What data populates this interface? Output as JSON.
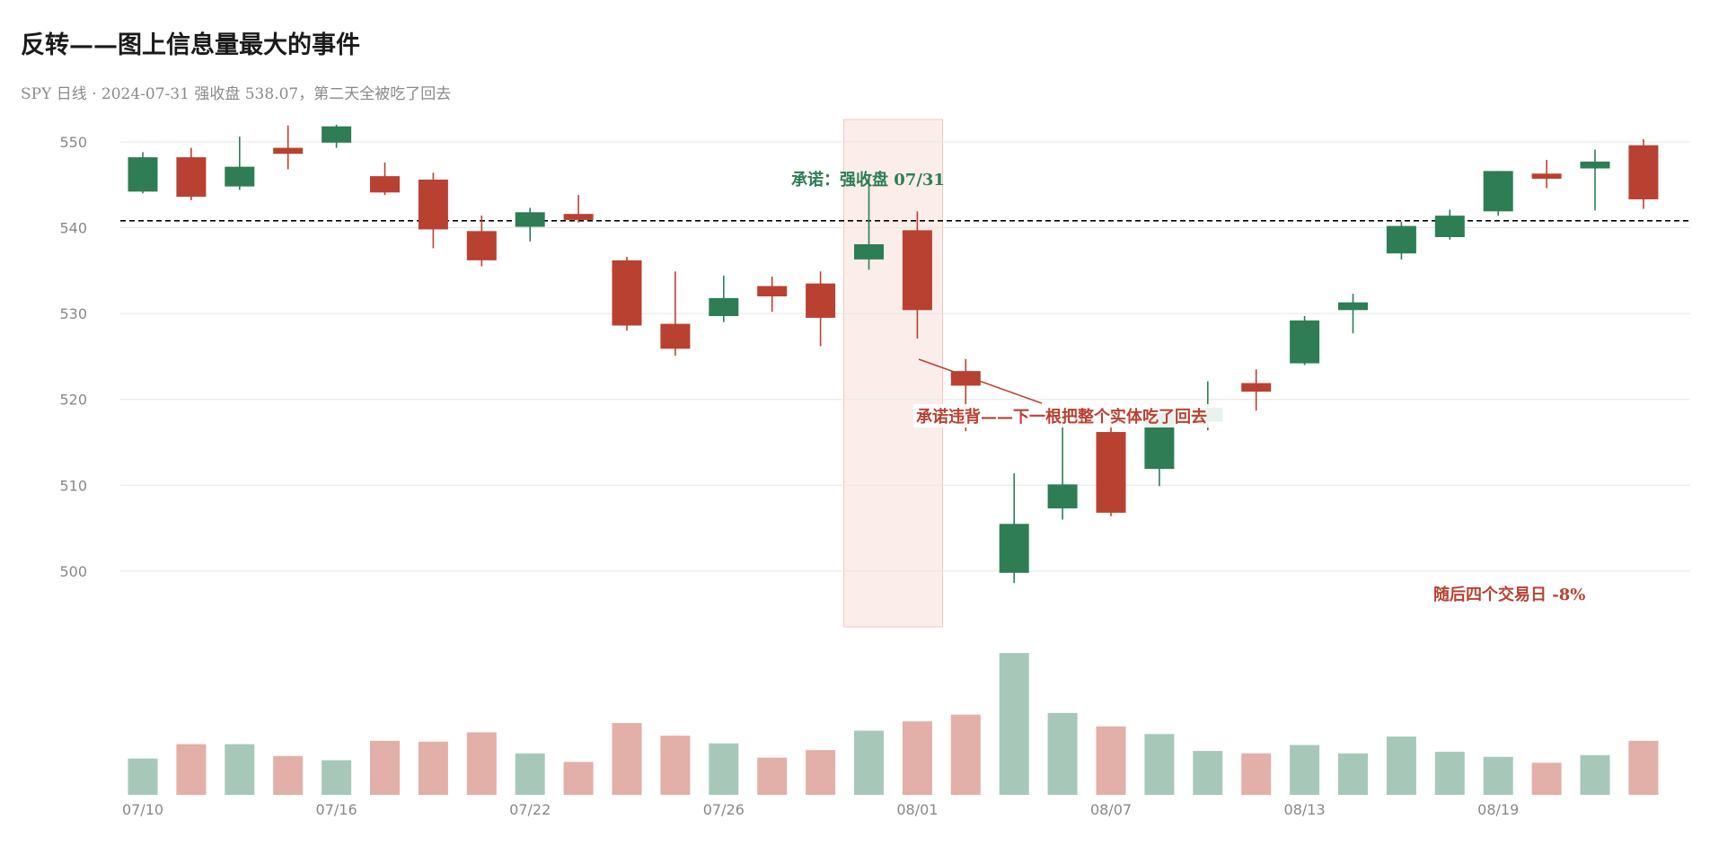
{
  "header": {
    "title": "反转——图上信息量最大的事件",
    "subtitle": "SPY 日线 · 2024-07-31 强收盘 538.07，第二天全被吃了回去"
  },
  "colors": {
    "up": "#2e7d55",
    "down": "#b94131",
    "highlight": "#f9e3df",
    "grid": "#e6e6e6",
    "reference": "#000000"
  },
  "chart_data": {
    "type": "candlestick",
    "title": "反转——图上信息量最大的事件",
    "subtitle": "SPY 日线 · 2024-07-31 强收盘 538.07，第二天全被吃了回去",
    "ylim": [
      496,
      553
    ],
    "yticks": [
      500,
      510,
      520,
      530,
      540,
      550
    ],
    "grid": true,
    "x_tick_labels": [
      "07/10",
      "07/16",
      "07/22",
      "07/26",
      "08/01",
      "08/07",
      "08/13",
      "08/19"
    ],
    "x_tick_index": [
      0,
      4,
      8,
      12,
      16,
      20,
      24,
      28
    ],
    "reference_line": 540.8,
    "highlight_index": 15,
    "candles": [
      {
        "date": "07/10",
        "open": 544.2,
        "high": 548.8,
        "low": 544.0,
        "close": 548.2,
        "volume": 43
      },
      {
        "date": "07/11",
        "open": 548.2,
        "high": 549.3,
        "low": 543.2,
        "close": 543.6,
        "volume": 60
      },
      {
        "date": "07/12",
        "open": 544.8,
        "high": 550.6,
        "low": 544.4,
        "close": 547.1,
        "volume": 60
      },
      {
        "date": "07/15",
        "open": 549.3,
        "high": 551.9,
        "low": 546.8,
        "close": 548.6,
        "volume": 46
      },
      {
        "date": "07/16",
        "open": 549.9,
        "high": 552.0,
        "low": 549.3,
        "close": 551.8,
        "volume": 41
      },
      {
        "date": "07/17",
        "open": 546.0,
        "high": 547.6,
        "low": 543.8,
        "close": 544.1,
        "volume": 64
      },
      {
        "date": "07/18",
        "open": 545.6,
        "high": 546.4,
        "low": 537.6,
        "close": 539.8,
        "volume": 63
      },
      {
        "date": "07/19",
        "open": 539.6,
        "high": 541.4,
        "low": 535.5,
        "close": 536.2,
        "volume": 74
      },
      {
        "date": "07/22",
        "open": 540.1,
        "high": 542.3,
        "low": 538.4,
        "close": 541.8,
        "volume": 49
      },
      {
        "date": "07/23",
        "open": 541.6,
        "high": 543.8,
        "low": 540.6,
        "close": 540.9,
        "volume": 39
      },
      {
        "date": "07/24",
        "open": 536.2,
        "high": 536.6,
        "low": 528.0,
        "close": 528.6,
        "volume": 85
      },
      {
        "date": "07/25",
        "open": 528.8,
        "high": 534.9,
        "low": 525.1,
        "close": 525.9,
        "volume": 70
      },
      {
        "date": "07/26",
        "open": 529.7,
        "high": 534.4,
        "low": 529.0,
        "close": 531.8,
        "volume": 61
      },
      {
        "date": "07/29",
        "open": 533.2,
        "high": 534.3,
        "low": 530.2,
        "close": 532.0,
        "volume": 44
      },
      {
        "date": "07/30",
        "open": 533.5,
        "high": 534.9,
        "low": 526.2,
        "close": 529.5,
        "volume": 53
      },
      {
        "date": "07/31",
        "open": 536.3,
        "high": 546.0,
        "low": 535.1,
        "close": 538.07,
        "volume": 76
      },
      {
        "date": "08/01",
        "open": 539.7,
        "high": 541.9,
        "low": 527.1,
        "close": 530.4,
        "volume": 87
      },
      {
        "date": "08/02",
        "open": 523.3,
        "high": 524.7,
        "low": 516.3,
        "close": 521.6,
        "volume": 95
      },
      {
        "date": "08/05",
        "open": 499.8,
        "high": 511.4,
        "low": 498.6,
        "close": 505.5,
        "volume": 168
      },
      {
        "date": "08/06",
        "open": 507.3,
        "high": 517.3,
        "low": 506.0,
        "close": 510.1,
        "volume": 97
      },
      {
        "date": "08/07",
        "open": 516.2,
        "high": 519.2,
        "low": 506.4,
        "close": 506.8,
        "volume": 81
      },
      {
        "date": "08/08",
        "open": 511.9,
        "high": 518.4,
        "low": 509.9,
        "close": 518.4,
        "volume": 72
      },
      {
        "date": "08/09",
        "open": 517.4,
        "high": 522.1,
        "low": 516.4,
        "close": 519.0,
        "volume": 52
      },
      {
        "date": "08/12",
        "open": 521.9,
        "high": 523.5,
        "low": 518.7,
        "close": 520.9,
        "volume": 49
      },
      {
        "date": "08/13",
        "open": 524.2,
        "high": 529.7,
        "low": 524.0,
        "close": 529.2,
        "volume": 59
      },
      {
        "date": "08/14",
        "open": 530.4,
        "high": 532.3,
        "low": 527.7,
        "close": 531.3,
        "volume": 49
      },
      {
        "date": "08/15",
        "open": 537.0,
        "high": 540.7,
        "low": 536.3,
        "close": 540.2,
        "volume": 69
      },
      {
        "date": "08/16",
        "open": 538.9,
        "high": 542.1,
        "low": 538.6,
        "close": 541.4,
        "volume": 51
      },
      {
        "date": "08/19",
        "open": 541.9,
        "high": 546.6,
        "low": 541.4,
        "close": 546.6,
        "volume": 45
      },
      {
        "date": "08/20",
        "open": 546.3,
        "high": 547.9,
        "low": 544.6,
        "close": 545.7,
        "volume": 38
      },
      {
        "date": "08/21",
        "open": 546.9,
        "high": 549.1,
        "low": 542.0,
        "close": 547.7,
        "volume": 47
      },
      {
        "date": "08/22",
        "open": 549.6,
        "high": 550.3,
        "low": 542.2,
        "close": 543.3,
        "volume": 64
      }
    ],
    "annotations": {
      "promise": "承诺：强收盘 07/31",
      "breach": "承诺违背——下一根把整个实体吃了回去",
      "aftermath": "随后四个交易日 -8%"
    }
  }
}
